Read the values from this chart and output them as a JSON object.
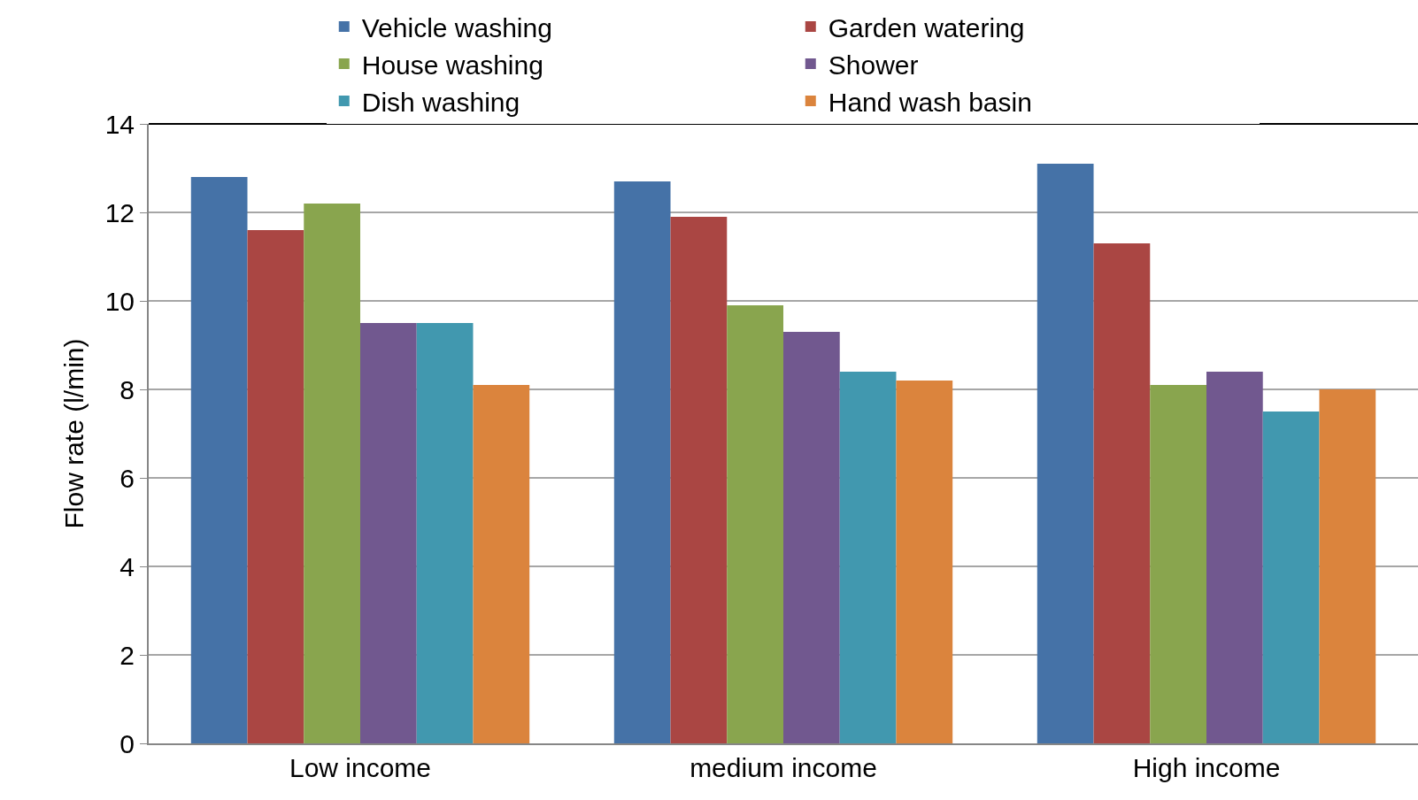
{
  "chart_data": {
    "type": "bar",
    "ylabel": "Flow rate (l/min)",
    "categories": [
      "Low income",
      "medium income",
      "High income"
    ],
    "series": [
      {
        "name": "Vehicle washing",
        "color": "#4572a7",
        "values": [
          12.8,
          12.7,
          13.1
        ]
      },
      {
        "name": "Garden watering",
        "color": "#aa4643",
        "values": [
          11.6,
          11.9,
          11.3
        ]
      },
      {
        "name": "House washing",
        "color": "#89a54e",
        "values": [
          12.2,
          9.9,
          8.1
        ]
      },
      {
        "name": "Shower",
        "color": "#71588f",
        "values": [
          9.5,
          9.3,
          8.4
        ]
      },
      {
        "name": "Dish washing",
        "color": "#4198af",
        "values": [
          9.5,
          8.4,
          7.5
        ]
      },
      {
        "name": "Hand wash basin",
        "color": "#db843d",
        "values": [
          8.1,
          8.2,
          8.0
        ]
      }
    ],
    "ylim": [
      0,
      14
    ],
    "yticks": [
      0,
      2,
      4,
      6,
      8,
      10,
      12,
      14
    ],
    "grid": "y",
    "legend": "top"
  }
}
